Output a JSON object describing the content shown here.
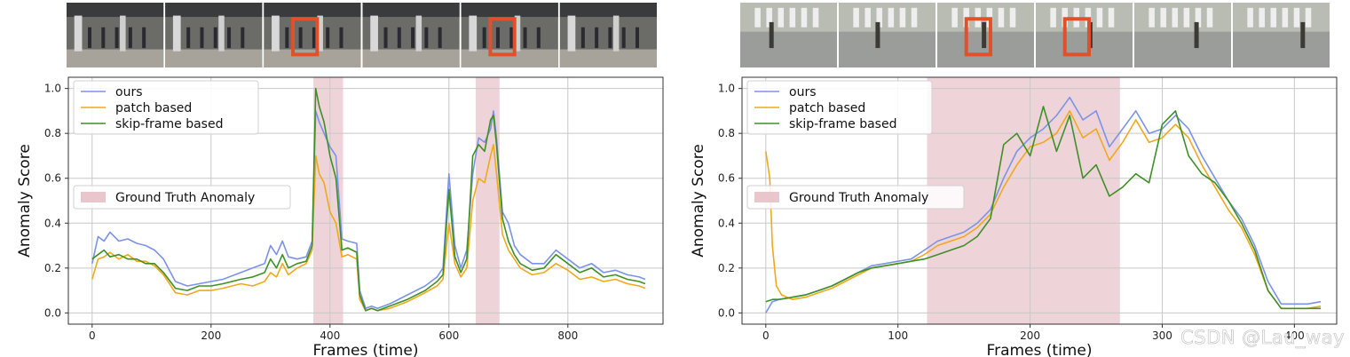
{
  "watermark": "CSDN @Lau_way",
  "colors": {
    "ours": "#7b93e6",
    "patch": "#f0a81c",
    "skip": "#3f8f28",
    "gt": "#e8c6cc",
    "frame_box": "#e0502a"
  },
  "chart_data": [
    {
      "type": "line",
      "ylabel": "Anomaly Score",
      "xlabel": "Frames (time)",
      "xlim": [
        -40,
        960
      ],
      "ylim": [
        -0.05,
        1.05
      ],
      "xticks": [
        0,
        200,
        400,
        600,
        800
      ],
      "yticks": [
        "0.0",
        "0.2",
        "0.4",
        "0.6",
        "0.8",
        "1.0"
      ],
      "grid": true,
      "legend": {
        "position": "top-left",
        "entries": [
          "ours",
          "patch based",
          "skip-frame based"
        ]
      },
      "ground_truth_label": "Ground Truth Anomaly",
      "ground_truth_intervals": [
        [
          372,
          422
        ],
        [
          645,
          685
        ]
      ],
      "thumbnail_boxes": [
        2,
        4
      ],
      "series": [
        {
          "name": "ours",
          "x": [
            0,
            10,
            20,
            30,
            45,
            60,
            75,
            90,
            105,
            120,
            140,
            160,
            180,
            200,
            220,
            250,
            270,
            290,
            300,
            310,
            320,
            330,
            345,
            360,
            370,
            376,
            382,
            390,
            400,
            410,
            420,
            430,
            445,
            450,
            460,
            470,
            480,
            500,
            530,
            560,
            580,
            590,
            600,
            610,
            620,
            630,
            640,
            650,
            660,
            670,
            675,
            680,
            690,
            700,
            710,
            720,
            740,
            760,
            780,
            800,
            820,
            840,
            860,
            880,
            900,
            920,
            930
          ],
          "values": [
            0.22,
            0.34,
            0.32,
            0.36,
            0.32,
            0.33,
            0.31,
            0.3,
            0.28,
            0.24,
            0.14,
            0.12,
            0.13,
            0.14,
            0.15,
            0.18,
            0.2,
            0.22,
            0.3,
            0.26,
            0.32,
            0.25,
            0.24,
            0.25,
            0.32,
            0.9,
            0.85,
            0.8,
            0.74,
            0.7,
            0.33,
            0.32,
            0.31,
            0.1,
            0.02,
            0.03,
            0.02,
            0.04,
            0.08,
            0.12,
            0.16,
            0.2,
            0.62,
            0.3,
            0.2,
            0.28,
            0.62,
            0.78,
            0.76,
            0.82,
            0.9,
            0.78,
            0.45,
            0.4,
            0.3,
            0.26,
            0.22,
            0.22,
            0.28,
            0.24,
            0.2,
            0.22,
            0.18,
            0.19,
            0.17,
            0.16,
            0.15
          ]
        },
        {
          "name": "patch based",
          "x": [
            0,
            10,
            20,
            30,
            45,
            60,
            75,
            90,
            105,
            120,
            140,
            160,
            180,
            200,
            220,
            250,
            270,
            290,
            300,
            310,
            320,
            330,
            345,
            360,
            370,
            376,
            382,
            390,
            400,
            410,
            420,
            430,
            445,
            450,
            460,
            470,
            480,
            500,
            530,
            560,
            580,
            590,
            600,
            610,
            620,
            630,
            640,
            650,
            660,
            670,
            675,
            680,
            690,
            700,
            710,
            720,
            740,
            760,
            780,
            800,
            820,
            840,
            860,
            880,
            900,
            920,
            930
          ],
          "values": [
            0.15,
            0.24,
            0.25,
            0.27,
            0.24,
            0.26,
            0.23,
            0.23,
            0.21,
            0.17,
            0.09,
            0.08,
            0.1,
            0.1,
            0.11,
            0.13,
            0.12,
            0.14,
            0.18,
            0.16,
            0.22,
            0.17,
            0.2,
            0.22,
            0.28,
            0.7,
            0.62,
            0.58,
            0.45,
            0.4,
            0.25,
            0.26,
            0.24,
            0.06,
            0.01,
            0.02,
            0.01,
            0.02,
            0.05,
            0.09,
            0.12,
            0.15,
            0.4,
            0.22,
            0.16,
            0.2,
            0.5,
            0.6,
            0.58,
            0.7,
            0.75,
            0.62,
            0.35,
            0.28,
            0.24,
            0.2,
            0.17,
            0.18,
            0.22,
            0.19,
            0.15,
            0.16,
            0.14,
            0.15,
            0.13,
            0.12,
            0.11
          ]
        },
        {
          "name": "skip-frame based",
          "x": [
            0,
            10,
            20,
            30,
            45,
            60,
            75,
            90,
            105,
            120,
            140,
            160,
            180,
            200,
            220,
            250,
            270,
            290,
            300,
            310,
            320,
            330,
            345,
            360,
            370,
            376,
            382,
            390,
            400,
            410,
            420,
            430,
            445,
            450,
            460,
            470,
            480,
            500,
            530,
            560,
            580,
            590,
            600,
            610,
            620,
            630,
            640,
            650,
            660,
            670,
            675,
            680,
            690,
            700,
            710,
            720,
            740,
            760,
            780,
            800,
            820,
            840,
            860,
            880,
            900,
            920,
            930
          ],
          "values": [
            0.24,
            0.26,
            0.28,
            0.25,
            0.26,
            0.24,
            0.24,
            0.22,
            0.22,
            0.18,
            0.11,
            0.1,
            0.12,
            0.12,
            0.13,
            0.15,
            0.16,
            0.18,
            0.24,
            0.2,
            0.26,
            0.2,
            0.22,
            0.23,
            0.3,
            1.0,
            0.92,
            0.85,
            0.7,
            0.6,
            0.28,
            0.29,
            0.27,
            0.08,
            0.01,
            0.02,
            0.01,
            0.03,
            0.06,
            0.1,
            0.14,
            0.17,
            0.55,
            0.25,
            0.18,
            0.24,
            0.7,
            0.75,
            0.72,
            0.86,
            0.88,
            0.75,
            0.42,
            0.32,
            0.26,
            0.22,
            0.19,
            0.2,
            0.26,
            0.22,
            0.18,
            0.2,
            0.16,
            0.17,
            0.15,
            0.14,
            0.13
          ]
        }
      ]
    },
    {
      "type": "line",
      "ylabel": "Anomaly Score",
      "xlabel": "Frames (time)",
      "xlim": [
        -18,
        432
      ],
      "ylim": [
        -0.05,
        1.05
      ],
      "xticks": [
        0,
        100,
        200,
        300,
        400
      ],
      "yticks": [
        "0.0",
        "0.2",
        "0.4",
        "0.6",
        "0.8",
        "1.0"
      ],
      "grid": true,
      "legend": {
        "position": "top-left",
        "entries": [
          "ours",
          "patch based",
          "skip-frame based"
        ]
      },
      "ground_truth_label": "Ground Truth Anomaly",
      "ground_truth_intervals": [
        [
          122,
          268
        ]
      ],
      "thumbnail_boxes": [
        2,
        3
      ],
      "series": [
        {
          "name": "ours",
          "x": [
            0,
            5,
            10,
            20,
            30,
            40,
            50,
            60,
            70,
            80,
            90,
            100,
            110,
            120,
            130,
            140,
            150,
            160,
            170,
            180,
            190,
            200,
            210,
            220,
            230,
            240,
            250,
            260,
            270,
            280,
            290,
            300,
            310,
            320,
            330,
            340,
            350,
            360,
            370,
            380,
            390,
            400,
            410,
            420
          ],
          "values": [
            0.0,
            0.05,
            0.06,
            0.07,
            0.08,
            0.1,
            0.12,
            0.15,
            0.18,
            0.21,
            0.22,
            0.23,
            0.24,
            0.28,
            0.32,
            0.34,
            0.36,
            0.4,
            0.46,
            0.6,
            0.72,
            0.78,
            0.82,
            0.88,
            0.96,
            0.86,
            0.9,
            0.74,
            0.82,
            0.9,
            0.8,
            0.82,
            0.88,
            0.82,
            0.7,
            0.6,
            0.5,
            0.42,
            0.3,
            0.14,
            0.04,
            0.04,
            0.04,
            0.05
          ]
        },
        {
          "name": "patch based",
          "x": [
            0,
            3,
            5,
            8,
            12,
            20,
            30,
            40,
            50,
            60,
            70,
            80,
            90,
            100,
            110,
            120,
            130,
            140,
            150,
            160,
            170,
            180,
            190,
            200,
            210,
            220,
            230,
            240,
            250,
            260,
            270,
            280,
            290,
            300,
            310,
            320,
            330,
            340,
            350,
            360,
            370,
            380,
            390,
            400,
            410,
            420
          ],
          "values": [
            0.72,
            0.6,
            0.3,
            0.12,
            0.08,
            0.06,
            0.07,
            0.09,
            0.11,
            0.14,
            0.17,
            0.2,
            0.21,
            0.22,
            0.23,
            0.26,
            0.3,
            0.32,
            0.34,
            0.38,
            0.44,
            0.56,
            0.66,
            0.74,
            0.76,
            0.8,
            0.9,
            0.78,
            0.82,
            0.68,
            0.76,
            0.86,
            0.76,
            0.78,
            0.84,
            0.78,
            0.66,
            0.56,
            0.46,
            0.38,
            0.26,
            0.1,
            0.02,
            0.02,
            0.02,
            0.03
          ]
        },
        {
          "name": "skip-frame based",
          "x": [
            0,
            5,
            10,
            20,
            30,
            40,
            50,
            60,
            70,
            80,
            90,
            100,
            110,
            120,
            130,
            140,
            150,
            160,
            170,
            180,
            190,
            200,
            210,
            220,
            230,
            240,
            250,
            260,
            270,
            280,
            290,
            300,
            310,
            320,
            330,
            340,
            350,
            360,
            370,
            380,
            390,
            400,
            410,
            420
          ],
          "values": [
            0.05,
            0.06,
            0.06,
            0.07,
            0.08,
            0.1,
            0.12,
            0.15,
            0.18,
            0.2,
            0.21,
            0.22,
            0.23,
            0.24,
            0.26,
            0.28,
            0.3,
            0.34,
            0.42,
            0.75,
            0.8,
            0.7,
            0.92,
            0.72,
            0.88,
            0.6,
            0.66,
            0.52,
            0.56,
            0.62,
            0.58,
            0.84,
            0.9,
            0.7,
            0.62,
            0.58,
            0.5,
            0.4,
            0.28,
            0.1,
            0.02,
            0.02,
            0.02,
            0.02
          ]
        }
      ]
    }
  ]
}
